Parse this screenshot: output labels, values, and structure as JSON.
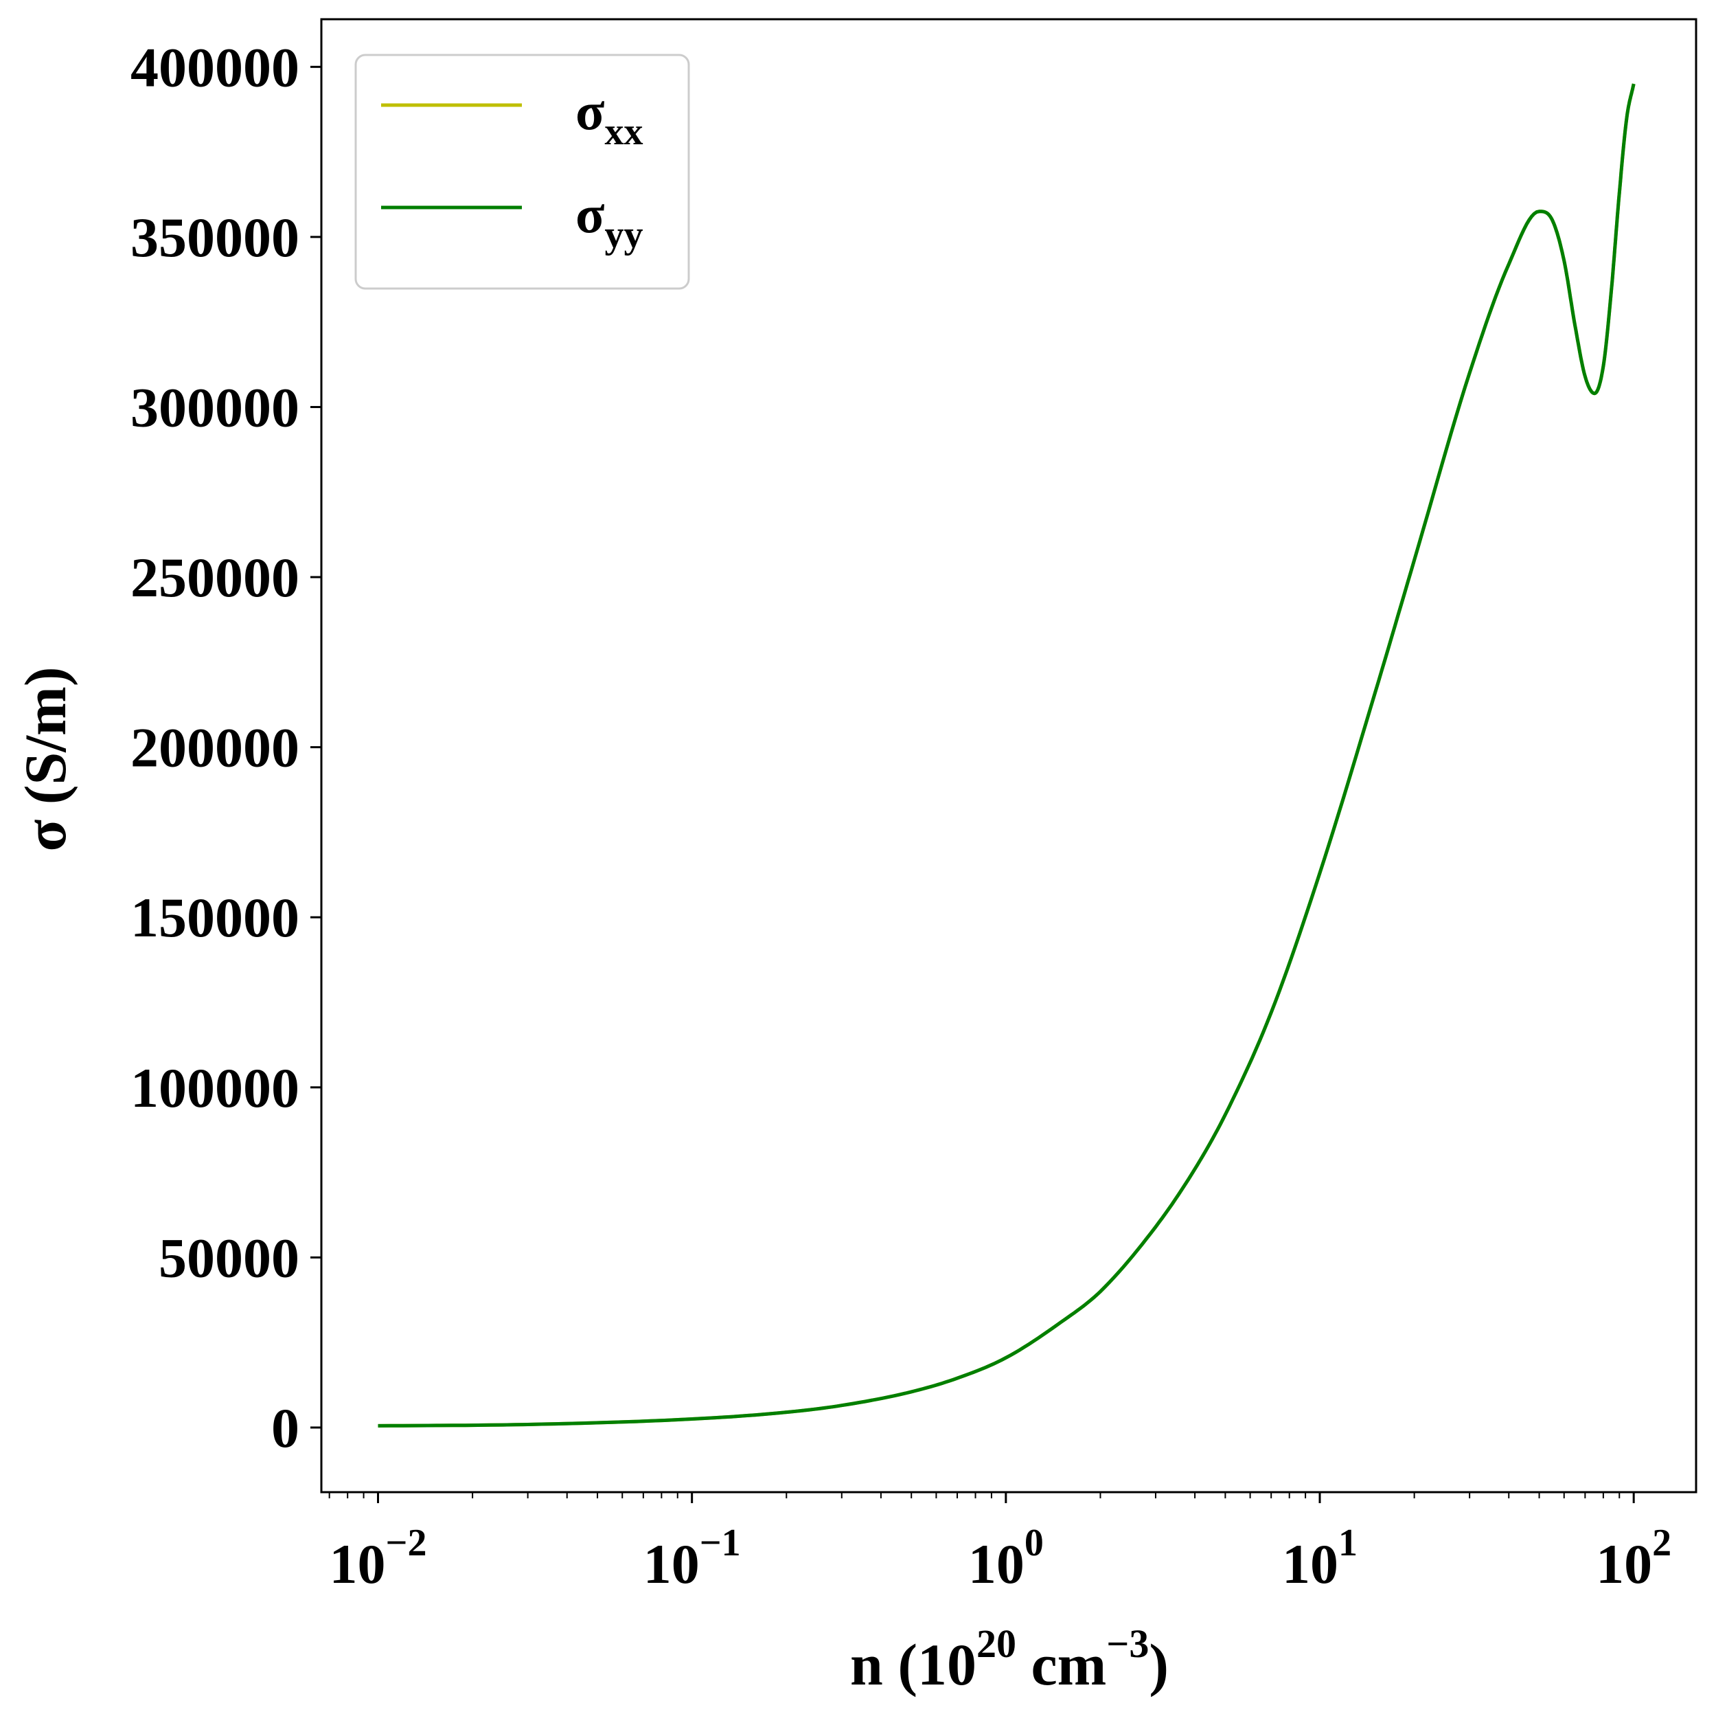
{
  "chart_data": {
    "type": "line",
    "xscale": "log",
    "xlim": [
      0.0066,
      158
    ],
    "ylim": [
      -19000,
      414000
    ],
    "grid": false,
    "legend_position": "top-left",
    "xlabel": {
      "base": "n (10",
      "exp1": "20",
      "mid": " cm",
      "exp2": "−3",
      "end": ")"
    },
    "ylabel": "σ (S/m)",
    "x_ticks": [
      {
        "value": 0.01,
        "base": "10",
        "exp": "−2"
      },
      {
        "value": 0.1,
        "base": "10",
        "exp": "−1"
      },
      {
        "value": 1,
        "base": "10",
        "exp": "0"
      },
      {
        "value": 10,
        "base": "10",
        "exp": "1"
      },
      {
        "value": 100,
        "base": "10",
        "exp": "2"
      }
    ],
    "y_ticks": [
      {
        "value": 0,
        "label": "0"
      },
      {
        "value": 50000,
        "label": "50000"
      },
      {
        "value": 100000,
        "label": "100000"
      },
      {
        "value": 150000,
        "label": "150000"
      },
      {
        "value": 200000,
        "label": "200000"
      },
      {
        "value": 250000,
        "label": "250000"
      },
      {
        "value": 300000,
        "label": "300000"
      },
      {
        "value": 350000,
        "label": "350000"
      },
      {
        "value": 400000,
        "label": "400000"
      }
    ],
    "series": [
      {
        "name": {
          "base": "σ",
          "sub": "xx"
        },
        "color": "#bfbf00",
        "x": [
          0.01,
          0.03,
          0.1,
          0.2,
          0.3,
          0.5,
          0.7,
          1,
          1.5,
          2,
          3,
          4,
          5,
          7,
          10,
          15,
          20,
          30,
          40,
          50,
          55,
          60,
          65,
          70,
          75,
          80,
          85,
          90,
          95,
          100
        ],
        "y": [
          500,
          900,
          2500,
          4500,
          6500,
          10500,
          14500,
          20500,
          31000,
          40000,
          59000,
          76000,
          92000,
          122000,
          163000,
          216000,
          255000,
          310000,
          342000,
          357500,
          355000,
          343000,
          324000,
          309000,
          304000,
          312000,
          335000,
          363000,
          385000,
          395000
        ]
      },
      {
        "name": {
          "base": "σ",
          "sub": "yy"
        },
        "color": "#007f00",
        "x": [
          0.01,
          0.03,
          0.1,
          0.2,
          0.3,
          0.5,
          0.7,
          1,
          1.5,
          2,
          3,
          4,
          5,
          7,
          10,
          15,
          20,
          30,
          40,
          50,
          55,
          60,
          65,
          70,
          75,
          80,
          85,
          90,
          95,
          100
        ],
        "y": [
          500,
          900,
          2500,
          4500,
          6500,
          10500,
          14500,
          20500,
          31000,
          40000,
          59000,
          76000,
          92000,
          122000,
          163000,
          216000,
          255000,
          310000,
          342000,
          357500,
          355000,
          343000,
          324000,
          309000,
          304000,
          312000,
          335000,
          363000,
          385000,
          395000
        ]
      }
    ]
  }
}
